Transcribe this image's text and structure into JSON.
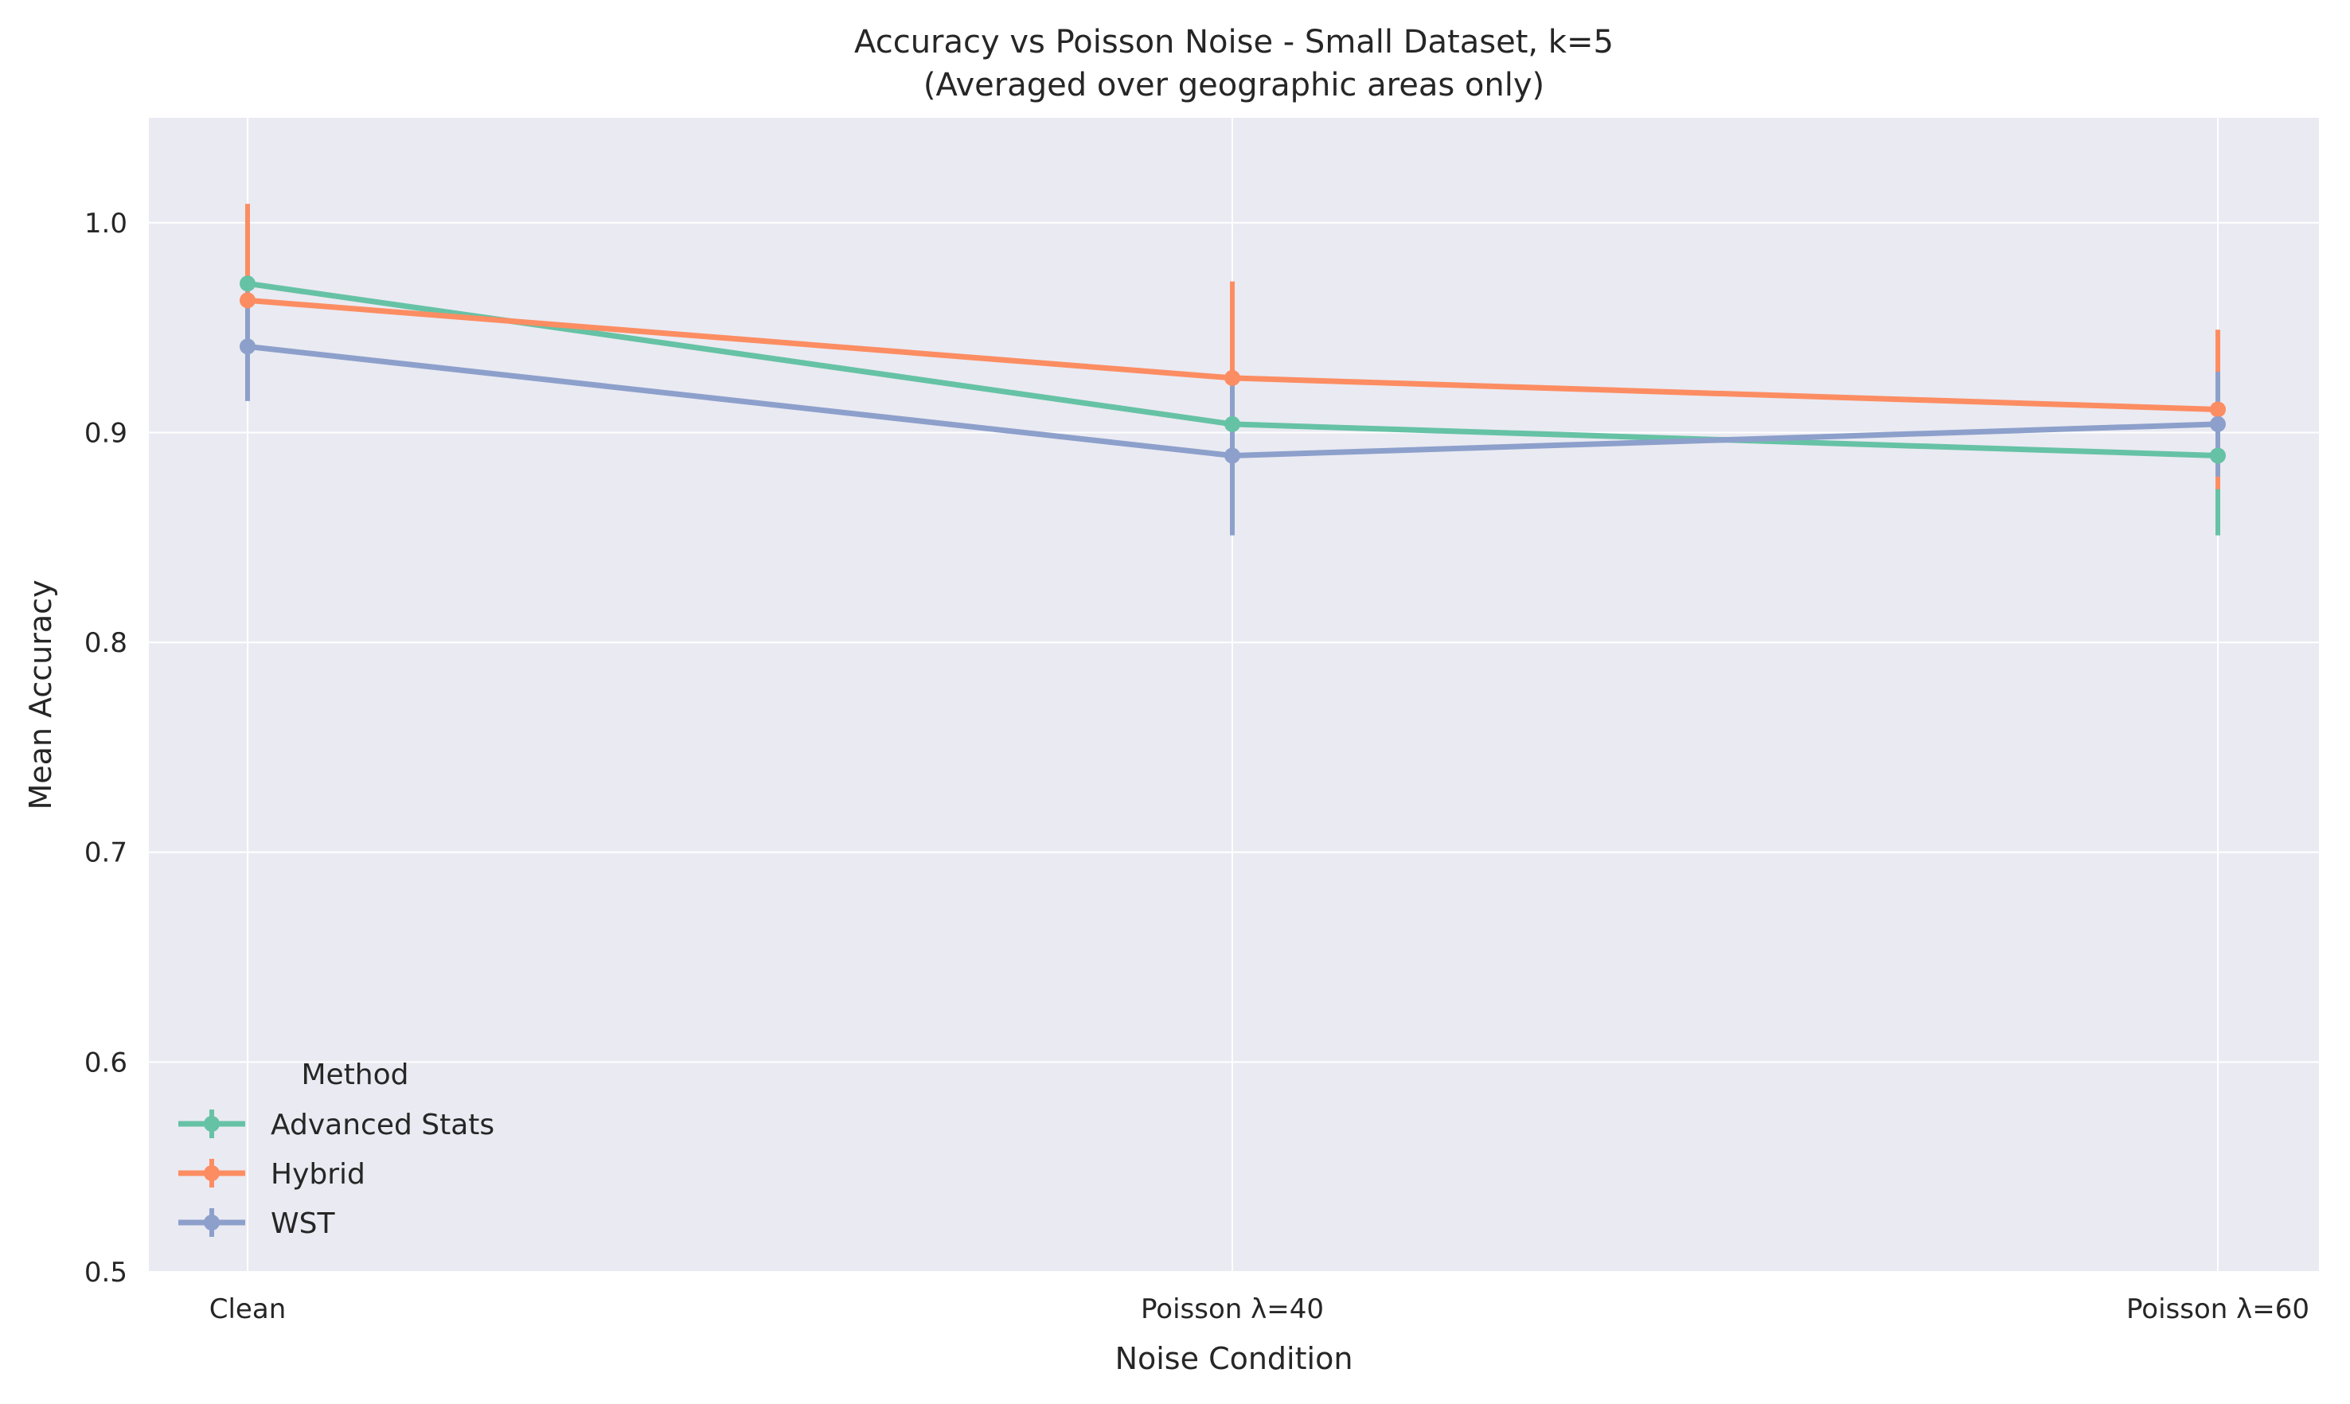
{
  "chart_data": {
    "type": "line",
    "title": "Accuracy vs Poisson Noise - Small Dataset, k=5",
    "subtitle": "(Averaged over geographic areas only)",
    "xlabel": "Noise Condition",
    "ylabel": "Mean Accuracy",
    "categories": [
      "Clean",
      "Poisson λ=40",
      "Poisson λ=60"
    ],
    "ylim": [
      0.5,
      1.05
    ],
    "yticks": [
      0.5,
      0.6,
      0.7,
      0.8,
      0.9,
      1.0
    ],
    "ytick_labels": [
      "0.5",
      "0.6",
      "0.7",
      "0.8",
      "0.9",
      "1.0"
    ],
    "grid": true,
    "legend": {
      "title": "Method",
      "placement": "lower-left"
    },
    "series": [
      {
        "name": "Advanced Stats",
        "color": "#66c2a5",
        "values": [
          0.971,
          0.904,
          0.889
        ],
        "errors": [
          0.0,
          0.0,
          0.038
        ]
      },
      {
        "name": "Hybrid",
        "color": "#fc8d62",
        "values": [
          0.963,
          0.926,
          0.911
        ],
        "errors": [
          0.046,
          0.046,
          0.038
        ]
      },
      {
        "name": "WST",
        "color": "#8da0cb",
        "values": [
          0.941,
          0.889,
          0.904
        ],
        "errors": [
          0.026,
          0.038,
          0.025
        ]
      }
    ]
  }
}
